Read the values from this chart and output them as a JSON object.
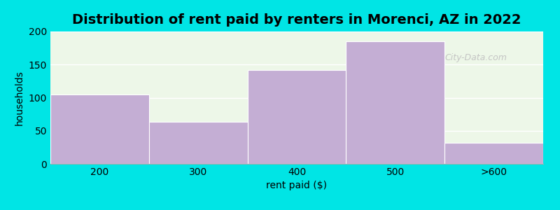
{
  "title": "Distribution of rent paid by renters in Morenci, AZ in 2022",
  "categories": [
    "200",
    "300",
    "400",
    "500",
    ">600"
  ],
  "values": [
    105,
    63,
    142,
    185,
    32
  ],
  "bar_color": "#c4aed4",
  "background_outer": "#00e5e5",
  "background_inner": "#edf7e8",
  "xlabel": "rent paid ($)",
  "ylabel": "households",
  "ylim": [
    0,
    200
  ],
  "yticks": [
    0,
    50,
    100,
    150,
    200
  ],
  "title_fontsize": 14,
  "axis_label_fontsize": 10,
  "tick_fontsize": 10,
  "bar_width": 1.0,
  "watermark": "City-Data.com"
}
